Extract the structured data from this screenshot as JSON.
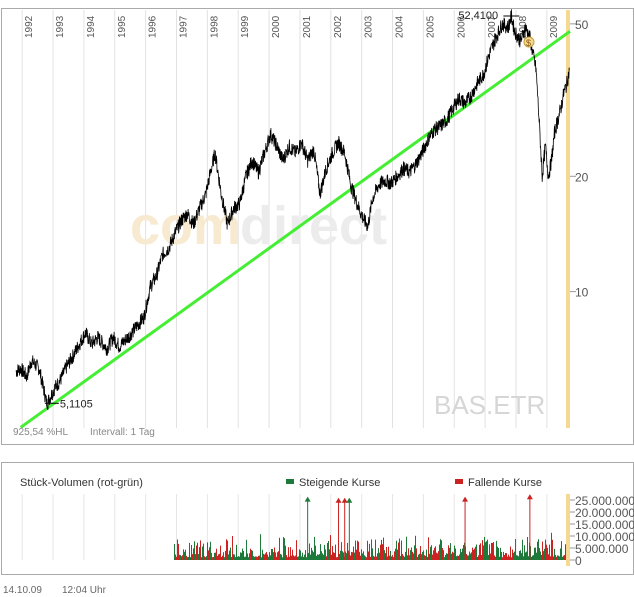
{
  "chart_data": [
    {
      "type": "line",
      "ticker": "BAS.ETR",
      "yscale": "log",
      "ylim": [
        4.3,
        55
      ],
      "x_range": [
        1991.85,
        2009.8
      ],
      "years": [
        "1992",
        "1993",
        "1994",
        "1995",
        "1996",
        "1997",
        "1998",
        "1999",
        "2000",
        "2001",
        "2002",
        "2003",
        "2004",
        "2005",
        "2006",
        "2007",
        "2008",
        "2009"
      ],
      "yticks": [
        10,
        20,
        50
      ],
      "high_label": "52,4100",
      "low_label": "5,1105",
      "high": {
        "x": 2007.9,
        "y": 52.41
      },
      "low": {
        "x": 1992.85,
        "y": 5.1105
      },
      "stats_left": "925,54 %HL",
      "stats_right": "Intervall: 1 Tag",
      "watermark": [
        "com",
        "direct"
      ],
      "series": [
        {
          "values_xy": [
            [
              1991.85,
              6.2
            ],
            [
              1992.0,
              6.3
            ],
            [
              1992.2,
              6.0
            ],
            [
              1992.35,
              6.6
            ],
            [
              1992.6,
              6.3
            ],
            [
              1992.85,
              5.1
            ],
            [
              1993.1,
              5.6
            ],
            [
              1993.3,
              5.9
            ],
            [
              1993.5,
              6.4
            ],
            [
              1993.7,
              6.8
            ],
            [
              1993.9,
              7.3
            ],
            [
              1994.1,
              7.8
            ],
            [
              1994.3,
              7.3
            ],
            [
              1994.5,
              7.6
            ],
            [
              1994.8,
              7.1
            ],
            [
              1995.0,
              7.6
            ],
            [
              1995.2,
              7.2
            ],
            [
              1995.4,
              7.5
            ],
            [
              1995.6,
              7.8
            ],
            [
              1995.8,
              8.2
            ],
            [
              1996.0,
              8.6
            ],
            [
              1996.2,
              10.3
            ],
            [
              1996.4,
              11.0
            ],
            [
              1996.6,
              12.5
            ],
            [
              1996.8,
              13.0
            ],
            [
              1997.0,
              14.2
            ],
            [
              1997.2,
              15.3
            ],
            [
              1997.4,
              16.0
            ],
            [
              1997.6,
              15.0
            ],
            [
              1997.8,
              16.5
            ],
            [
              1998.0,
              18.0
            ],
            [
              1998.15,
              20.5
            ],
            [
              1998.3,
              23.0
            ],
            [
              1998.5,
              18.0
            ],
            [
              1998.7,
              15.0
            ],
            [
              1998.9,
              16.5
            ],
            [
              1999.1,
              17.0
            ],
            [
              1999.3,
              20.0
            ],
            [
              1999.5,
              22.0
            ],
            [
              1999.7,
              20.5
            ],
            [
              1999.9,
              23.0
            ],
            [
              2000.1,
              25.8
            ],
            [
              2000.3,
              24.0
            ],
            [
              2000.5,
              22.0
            ],
            [
              2000.7,
              24.0
            ],
            [
              2000.9,
              23.0
            ],
            [
              2001.1,
              24.5
            ],
            [
              2001.3,
              22.0
            ],
            [
              2001.5,
              23.5
            ],
            [
              2001.7,
              18.0
            ],
            [
              2001.9,
              21.0
            ],
            [
              2002.1,
              23.0
            ],
            [
              2002.3,
              24.5
            ],
            [
              2002.5,
              23.0
            ],
            [
              2002.7,
              19.0
            ],
            [
              2002.9,
              17.0
            ],
            [
              2003.1,
              15.5
            ],
            [
              2003.25,
              14.8
            ],
            [
              2003.4,
              17.5
            ],
            [
              2003.6,
              19.0
            ],
            [
              2003.8,
              19.5
            ],
            [
              2004.0,
              19.2
            ],
            [
              2004.2,
              20.0
            ],
            [
              2004.4,
              21.0
            ],
            [
              2004.6,
              20.5
            ],
            [
              2004.8,
              21.5
            ],
            [
              2005.0,
              23.0
            ],
            [
              2005.2,
              25.0
            ],
            [
              2005.4,
              26.5
            ],
            [
              2005.6,
              27.0
            ],
            [
              2005.8,
              28.0
            ],
            [
              2006.0,
              30.0
            ],
            [
              2006.2,
              32.0
            ],
            [
              2006.4,
              31.0
            ],
            [
              2006.6,
              32.5
            ],
            [
              2006.8,
              35.0
            ],
            [
              2007.0,
              37.0
            ],
            [
              2007.2,
              42.0
            ],
            [
              2007.4,
              46.0
            ],
            [
              2007.6,
              50.0
            ],
            [
              2007.8,
              49.0
            ],
            [
              2007.9,
              52.41
            ],
            [
              2008.0,
              48.0
            ],
            [
              2008.2,
              45.0
            ],
            [
              2008.35,
              49.0
            ],
            [
              2008.5,
              46.0
            ],
            [
              2008.7,
              38.0
            ],
            [
              2008.8,
              28.0
            ],
            [
              2008.9,
              20.0
            ],
            [
              2009.0,
              24.0
            ],
            [
              2009.1,
              20.0
            ],
            [
              2009.2,
              22.0
            ],
            [
              2009.3,
              26.0
            ],
            [
              2009.4,
              28.0
            ],
            [
              2009.5,
              30.0
            ],
            [
              2009.6,
              33.0
            ],
            [
              2009.7,
              35.0
            ],
            [
              2009.78,
              38.0
            ]
          ]
        },
        {
          "name": "trend",
          "values_xy": [
            [
              1992.0,
              4.42
            ],
            [
              2009.8,
              47.8
            ]
          ]
        }
      ]
    },
    {
      "type": "bar",
      "title": "Stück-Volumen (rot-grün)",
      "legend": [
        "Steigende Kurse",
        "Fallende Kurse"
      ],
      "yticks": [
        "25.000.000",
        "20.000.000",
        "15.000.000",
        "10.000.000",
        "5.000.000",
        "0"
      ],
      "ylim": [
        0,
        27500000
      ],
      "x_start": 1997.0,
      "avg_volume": 4500000,
      "peaks": [
        [
          2001.3,
          26000000
        ],
        [
          2002.3,
          25500000
        ],
        [
          2002.5,
          25500000
        ],
        [
          2002.65,
          25500000
        ],
        [
          2006.4,
          26000000
        ],
        [
          2008.5,
          27000000
        ]
      ]
    }
  ],
  "colors": {
    "price": "#000000",
    "trend": "#44ee33",
    "cursor": "#f5d990",
    "rise": "#1e7a3a",
    "fall": "#cc2222"
  },
  "footer": {
    "date": "14.10.09",
    "time": "12:04 Uhr"
  }
}
